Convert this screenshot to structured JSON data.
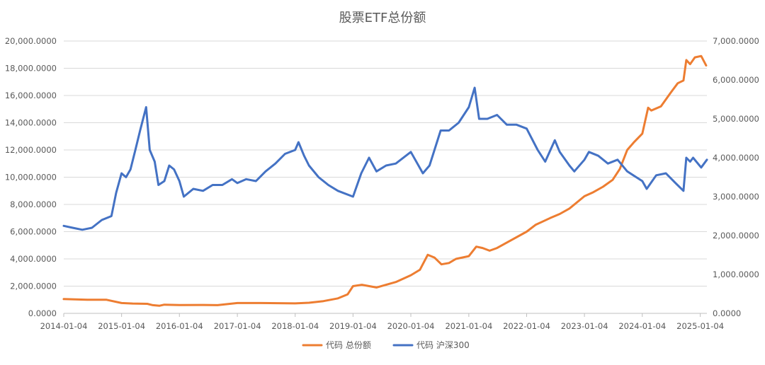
{
  "chart_data": {
    "type": "line",
    "title": "股票ETF总份额",
    "x_tick_labels": [
      "2014-01-04",
      "2015-01-04",
      "2016-01-04",
      "2017-01-04",
      "2018-01-04",
      "2019-01-04",
      "2020-01-04",
      "2021-01-04",
      "2022-01-04",
      "2023-01-04",
      "2024-01-04",
      "2025-01-04"
    ],
    "y_left_ticks": [
      "0.0000",
      "2,000.0000",
      "4,000.0000",
      "6,000.0000",
      "8,000.0000",
      "10,000.0000",
      "12,000.0000",
      "14,000.0000",
      "16,000.0000",
      "18,000.0000",
      "20,000.0000"
    ],
    "y_right_ticks": [
      "0.0000",
      "1,000.0000",
      "2,000.0000",
      "3,000.0000",
      "4,000.0000",
      "5,000.0000",
      "6,000.0000",
      "7,000.0000"
    ],
    "y_left_lim": [
      0,
      20000
    ],
    "y_right_lim": [
      0,
      7000
    ],
    "x_lim": [
      "2014-01-04",
      "2025-02-15"
    ],
    "grid": true,
    "legend_position": "bottom",
    "series": [
      {
        "name": "代码 总份额",
        "axis": "left",
        "color": "#ED7D31",
        "points": [
          [
            "2014-01-04",
            1050
          ],
          [
            "2014-06-01",
            1000
          ],
          [
            "2014-10-01",
            1000
          ],
          [
            "2015-01-04",
            760
          ],
          [
            "2015-03-15",
            720
          ],
          [
            "2015-06-15",
            700
          ],
          [
            "2015-07-20",
            600
          ],
          [
            "2015-09-01",
            560
          ],
          [
            "2015-10-01",
            640
          ],
          [
            "2016-01-04",
            610
          ],
          [
            "2016-06-01",
            620
          ],
          [
            "2016-09-01",
            600
          ],
          [
            "2017-01-04",
            760
          ],
          [
            "2017-06-01",
            760
          ],
          [
            "2018-01-04",
            730
          ],
          [
            "2018-04-01",
            780
          ],
          [
            "2018-07-01",
            900
          ],
          [
            "2018-10-01",
            1100
          ],
          [
            "2018-12-01",
            1400
          ],
          [
            "2019-01-04",
            2000
          ],
          [
            "2019-03-01",
            2100
          ],
          [
            "2019-06-01",
            1900
          ],
          [
            "2019-08-01",
            2100
          ],
          [
            "2019-10-01",
            2300
          ],
          [
            "2020-01-04",
            2800
          ],
          [
            "2020-03-01",
            3200
          ],
          [
            "2020-04-20",
            4300
          ],
          [
            "2020-06-01",
            4100
          ],
          [
            "2020-07-15",
            3600
          ],
          [
            "2020-09-01",
            3700
          ],
          [
            "2020-10-15",
            4000
          ],
          [
            "2021-01-04",
            4200
          ],
          [
            "2021-02-20",
            4900
          ],
          [
            "2021-04-01",
            4800
          ],
          [
            "2021-05-15",
            4600
          ],
          [
            "2021-07-01",
            4800
          ],
          [
            "2021-09-01",
            5200
          ],
          [
            "2022-01-04",
            6000
          ],
          [
            "2022-03-01",
            6500
          ],
          [
            "2022-06-01",
            7000
          ],
          [
            "2022-08-01",
            7300
          ],
          [
            "2022-10-01",
            7700
          ],
          [
            "2023-01-04",
            8600
          ],
          [
            "2023-03-01",
            8900
          ],
          [
            "2023-05-01",
            9300
          ],
          [
            "2023-07-01",
            9800
          ],
          [
            "2023-08-15",
            10600
          ],
          [
            "2023-10-01",
            12000
          ],
          [
            "2023-11-15",
            12600
          ],
          [
            "2024-01-04",
            13200
          ],
          [
            "2024-02-10",
            15100
          ],
          [
            "2024-03-01",
            14900
          ],
          [
            "2024-05-01",
            15200
          ],
          [
            "2024-07-01",
            16200
          ],
          [
            "2024-08-15",
            16900
          ],
          [
            "2024-09-20",
            17100
          ],
          [
            "2024-10-08",
            18600
          ],
          [
            "2024-11-01",
            18300
          ],
          [
            "2024-12-01",
            18800
          ],
          [
            "2025-01-10",
            18900
          ],
          [
            "2025-02-10",
            18200
          ]
        ]
      },
      {
        "name": "代码 沪深300",
        "axis": "right",
        "color": "#4472C4",
        "points": [
          [
            "2014-01-04",
            2250
          ],
          [
            "2014-03-01",
            2200
          ],
          [
            "2014-05-01",
            2150
          ],
          [
            "2014-07-01",
            2200
          ],
          [
            "2014-09-01",
            2400
          ],
          [
            "2014-11-01",
            2500
          ],
          [
            "2014-12-01",
            3100
          ],
          [
            "2015-01-04",
            3600
          ],
          [
            "2015-02-01",
            3500
          ],
          [
            "2015-03-01",
            3700
          ],
          [
            "2015-04-01",
            4200
          ],
          [
            "2015-05-01",
            4700
          ],
          [
            "2015-06-08",
            5300
          ],
          [
            "2015-07-01",
            4200
          ],
          [
            "2015-08-01",
            3900
          ],
          [
            "2015-08-25",
            3300
          ],
          [
            "2015-10-01",
            3400
          ],
          [
            "2015-11-01",
            3800
          ],
          [
            "2015-12-01",
            3700
          ],
          [
            "2016-01-04",
            3400
          ],
          [
            "2016-02-01",
            3000
          ],
          [
            "2016-04-01",
            3200
          ],
          [
            "2016-06-01",
            3150
          ],
          [
            "2016-08-01",
            3300
          ],
          [
            "2016-10-01",
            3300
          ],
          [
            "2016-12-01",
            3450
          ],
          [
            "2017-01-04",
            3350
          ],
          [
            "2017-03-01",
            3450
          ],
          [
            "2017-05-01",
            3400
          ],
          [
            "2017-07-01",
            3650
          ],
          [
            "2017-09-01",
            3850
          ],
          [
            "2017-11-01",
            4100
          ],
          [
            "2018-01-04",
            4200
          ],
          [
            "2018-01-25",
            4400
          ],
          [
            "2018-03-01",
            4050
          ],
          [
            "2018-04-01",
            3800
          ],
          [
            "2018-06-01",
            3500
          ],
          [
            "2018-08-01",
            3300
          ],
          [
            "2018-10-01",
            3150
          ],
          [
            "2019-01-04",
            3000
          ],
          [
            "2019-02-25",
            3600
          ],
          [
            "2019-04-15",
            4000
          ],
          [
            "2019-06-01",
            3650
          ],
          [
            "2019-08-01",
            3800
          ],
          [
            "2019-10-01",
            3850
          ],
          [
            "2020-01-04",
            4150
          ],
          [
            "2020-03-20",
            3600
          ],
          [
            "2020-05-01",
            3800
          ],
          [
            "2020-07-10",
            4700
          ],
          [
            "2020-09-01",
            4700
          ],
          [
            "2020-11-01",
            4900
          ],
          [
            "2021-01-04",
            5300
          ],
          [
            "2021-02-10",
            5800
          ],
          [
            "2021-03-10",
            5000
          ],
          [
            "2021-05-01",
            5000
          ],
          [
            "2021-07-01",
            5100
          ],
          [
            "2021-09-01",
            4850
          ],
          [
            "2021-11-01",
            4850
          ],
          [
            "2022-01-04",
            4750
          ],
          [
            "2022-03-15",
            4200
          ],
          [
            "2022-05-01",
            3900
          ],
          [
            "2022-07-01",
            4450
          ],
          [
            "2022-08-01",
            4150
          ],
          [
            "2022-10-01",
            3800
          ],
          [
            "2022-11-01",
            3650
          ],
          [
            "2023-01-04",
            3950
          ],
          [
            "2023-02-01",
            4150
          ],
          [
            "2023-04-01",
            4050
          ],
          [
            "2023-06-01",
            3850
          ],
          [
            "2023-08-01",
            3950
          ],
          [
            "2023-10-01",
            3650
          ],
          [
            "2024-01-04",
            3400
          ],
          [
            "2024-02-01",
            3200
          ],
          [
            "2024-04-01",
            3550
          ],
          [
            "2024-06-01",
            3600
          ],
          [
            "2024-08-01",
            3350
          ],
          [
            "2024-09-20",
            3150
          ],
          [
            "2024-10-08",
            4000
          ],
          [
            "2024-11-01",
            3900
          ],
          [
            "2024-11-20",
            4000
          ],
          [
            "2025-01-10",
            3750
          ],
          [
            "2025-02-15",
            3950
          ]
        ]
      }
    ]
  }
}
